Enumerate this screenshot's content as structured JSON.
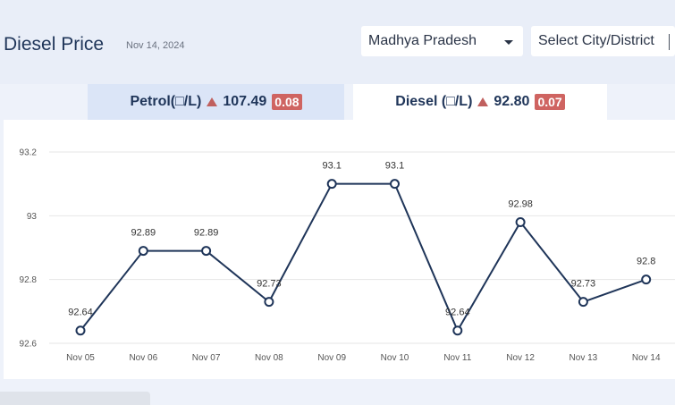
{
  "header": {
    "title": "Diesel Price",
    "date": "Nov 14, 2024",
    "state_select": "Madhya Pradesh",
    "city_select": "Select City/District"
  },
  "tabs": {
    "petrol": {
      "label": "Petrol(□/L)",
      "price": "107.49",
      "change": "0.08"
    },
    "diesel": {
      "label": "Diesel (□/L)",
      "price": "92.80",
      "change": "0.07"
    }
  },
  "colors": {
    "line": "#1f3559",
    "badge": "#cf6461",
    "up_arrow": "#c0605e"
  },
  "chart_data": {
    "type": "line",
    "categories": [
      "Nov 05",
      "Nov 06",
      "Nov 07",
      "Nov 08",
      "Nov 09",
      "Nov 10",
      "Nov 11",
      "Nov 12",
      "Nov 13",
      "Nov 14"
    ],
    "values": [
      92.64,
      92.89,
      92.89,
      92.73,
      93.1,
      93.1,
      92.64,
      92.98,
      92.73,
      92.8
    ],
    "value_labels": [
      "92.64",
      "92.89",
      "92.89",
      "92.73",
      "93.1",
      "93.1",
      "92.64",
      "92.98",
      "92.73",
      "92.8"
    ],
    "yticks": [
      92.6,
      92.8,
      93,
      93.2
    ],
    "ytick_labels": [
      "92.6",
      "92.8",
      "93",
      "93.2"
    ],
    "ylim": [
      92.6,
      93.2
    ],
    "grid": true
  }
}
